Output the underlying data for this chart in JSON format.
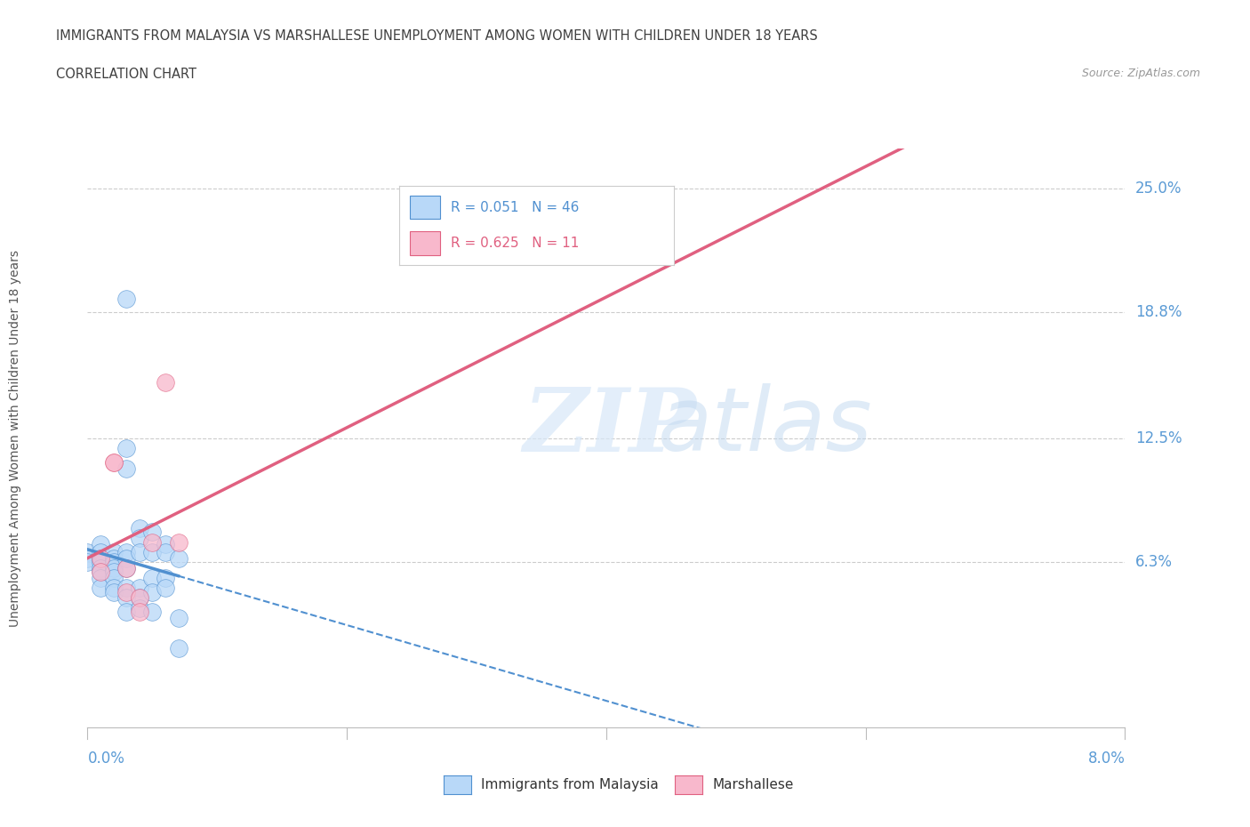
{
  "title": "IMMIGRANTS FROM MALAYSIA VS MARSHALLESE UNEMPLOYMENT AMONG WOMEN WITH CHILDREN UNDER 18 YEARS",
  "subtitle": "CORRELATION CHART",
  "source": "Source: ZipAtlas.com",
  "xlabel_bottom_left": "0.0%",
  "xlabel_bottom_right": "8.0%",
  "ylabel_label": "Unemployment Among Women with Children Under 18 years",
  "ytick_labels": [
    "6.3%",
    "12.5%",
    "18.8%",
    "25.0%"
  ],
  "ytick_values": [
    0.063,
    0.125,
    0.188,
    0.25
  ],
  "xmin": 0.0,
  "xmax": 0.08,
  "ymin": -0.02,
  "ymax": 0.27,
  "legend_r_malaysia": "0.051",
  "legend_n_malaysia": "46",
  "legend_r_marshallese": "0.625",
  "legend_n_marshallese": "11",
  "malaysia_color": "#b8d8f8",
  "marshallese_color": "#f8b8cc",
  "malaysia_line_color": "#5090d0",
  "marshallese_line_color": "#e06080",
  "malaysia_scatter": [
    [
      0.0,
      0.068
    ],
    [
      0.0,
      0.065
    ],
    [
      0.0,
      0.063
    ],
    [
      0.001,
      0.072
    ],
    [
      0.001,
      0.068
    ],
    [
      0.001,
      0.065
    ],
    [
      0.001,
      0.063
    ],
    [
      0.001,
      0.06
    ],
    [
      0.001,
      0.058
    ],
    [
      0.001,
      0.055
    ],
    [
      0.001,
      0.05
    ],
    [
      0.002,
      0.068
    ],
    [
      0.002,
      0.065
    ],
    [
      0.002,
      0.063
    ],
    [
      0.002,
      0.06
    ],
    [
      0.002,
      0.058
    ],
    [
      0.002,
      0.055
    ],
    [
      0.002,
      0.05
    ],
    [
      0.002,
      0.048
    ],
    [
      0.003,
      0.195
    ],
    [
      0.003,
      0.12
    ],
    [
      0.003,
      0.11
    ],
    [
      0.003,
      0.068
    ],
    [
      0.003,
      0.065
    ],
    [
      0.003,
      0.06
    ],
    [
      0.003,
      0.05
    ],
    [
      0.003,
      0.045
    ],
    [
      0.003,
      0.038
    ],
    [
      0.004,
      0.08
    ],
    [
      0.004,
      0.075
    ],
    [
      0.004,
      0.068
    ],
    [
      0.004,
      0.05
    ],
    [
      0.004,
      0.045
    ],
    [
      0.004,
      0.04
    ],
    [
      0.005,
      0.078
    ],
    [
      0.005,
      0.068
    ],
    [
      0.005,
      0.055
    ],
    [
      0.005,
      0.048
    ],
    [
      0.005,
      0.038
    ],
    [
      0.006,
      0.072
    ],
    [
      0.006,
      0.068
    ],
    [
      0.006,
      0.055
    ],
    [
      0.006,
      0.05
    ],
    [
      0.007,
      0.065
    ],
    [
      0.007,
      0.035
    ],
    [
      0.007,
      0.02
    ]
  ],
  "marshallese_scatter": [
    [
      0.001,
      0.065
    ],
    [
      0.001,
      0.058
    ],
    [
      0.002,
      0.113
    ],
    [
      0.002,
      0.113
    ],
    [
      0.003,
      0.06
    ],
    [
      0.003,
      0.048
    ],
    [
      0.004,
      0.045
    ],
    [
      0.004,
      0.038
    ],
    [
      0.005,
      0.073
    ],
    [
      0.006,
      0.153
    ],
    [
      0.007,
      0.073
    ]
  ],
  "watermark_zip": "ZIP",
  "watermark_atlas": "atlas",
  "background_color": "#ffffff",
  "grid_color": "#cccccc",
  "title_color": "#404040",
  "axis_label_color": "#5b9bd5",
  "subtitle_color": "#404040",
  "source_color": "#999999",
  "ylabel_color": "#555555",
  "bottom_legend_text_color": "#333333"
}
